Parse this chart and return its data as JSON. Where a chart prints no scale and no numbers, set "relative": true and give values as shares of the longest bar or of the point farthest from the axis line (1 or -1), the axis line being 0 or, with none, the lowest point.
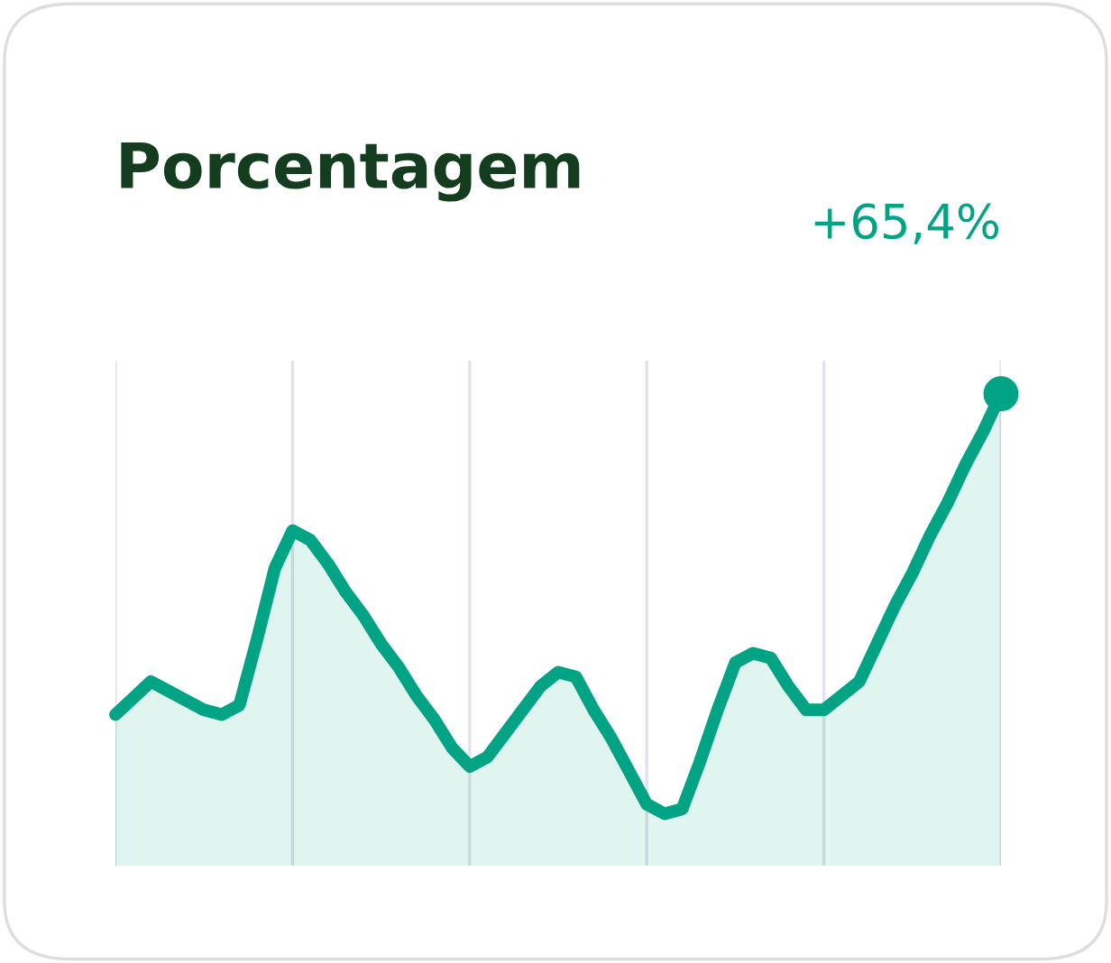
{
  "chart_data": {
    "type": "area",
    "title": "Porcentagem",
    "relative": true,
    "categories": [
      null,
      null,
      null,
      null,
      null,
      null,
      null,
      null,
      null,
      null,
      null,
      null,
      null,
      null,
      null,
      null,
      null,
      null,
      null,
      null,
      null,
      null,
      null,
      null,
      null,
      null,
      null,
      null,
      null,
      null,
      null,
      null,
      null,
      null,
      null,
      null,
      null,
      null,
      null,
      null,
      null,
      null,
      null,
      null,
      null,
      null,
      null,
      null,
      null,
      null,
      null
    ],
    "grid": "x",
    "series": [
      {
        "color": "#00a383",
        "values": [
          0.32,
          0.355,
          0.39,
          0.37,
          0.35,
          0.33,
          0.32,
          0.34,
          0.48,
          0.63,
          0.71,
          0.69,
          0.64,
          0.58,
          0.53,
          0.47,
          0.42,
          0.36,
          0.31,
          0.25,
          0.21,
          0.23,
          0.28,
          0.33,
          0.38,
          0.41,
          0.4,
          0.33,
          0.27,
          0.2,
          0.13,
          0.11,
          0.12,
          0.22,
          0.33,
          0.43,
          0.45,
          0.44,
          0.38,
          0.33,
          0.33,
          0.36,
          0.39,
          0.47,
          0.55,
          0.62,
          0.7,
          0.77,
          0.85,
          0.92,
          1
        ]
      }
    ],
    "annotations": [
      "+65,4%"
    ]
  }
}
